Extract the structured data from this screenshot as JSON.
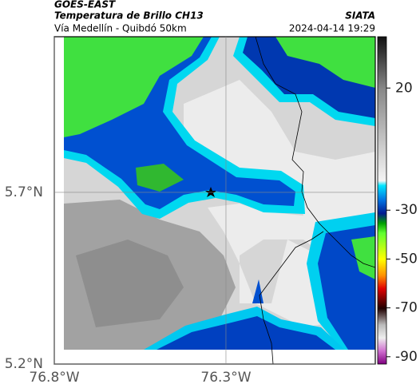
{
  "header": {
    "source": "GOES-EAST",
    "title": "Temperatura de Brillo CH13",
    "subtitle": "Vía Medellín - Quibdó 50km",
    "credit": "SIATA",
    "timestamp": "2024-04-14 19:29"
  },
  "map": {
    "xlim": [
      -76.8,
      -75.865
    ],
    "ylim": [
      5.2,
      6.153
    ],
    "xticks": [
      {
        "value": -76.8,
        "label": "76.8°W"
      },
      {
        "value": -76.3,
        "label": "76.3°W"
      }
    ],
    "yticks": [
      {
        "value": 5.2,
        "label": "5.2°N"
      },
      {
        "value": 5.7,
        "label": "5.7°N"
      }
    ],
    "grid": true
  },
  "colorbar": {
    "lim": [
      -93,
      41
    ],
    "ticks": [
      20,
      -30,
      -50,
      -70,
      -90
    ]
  }
}
